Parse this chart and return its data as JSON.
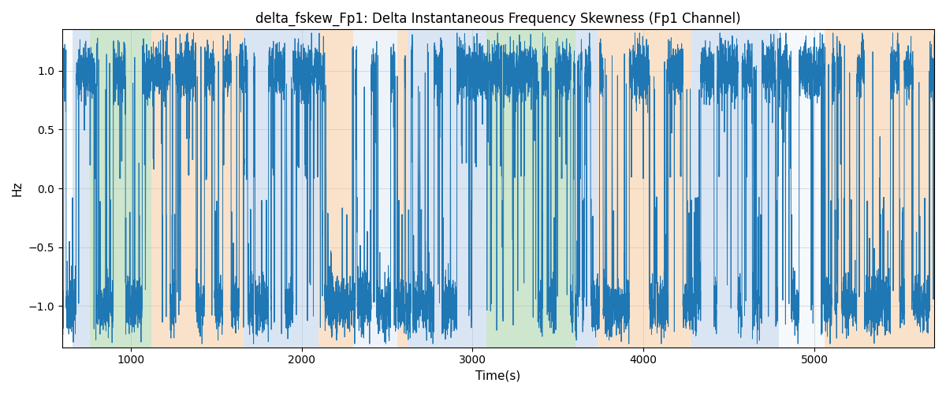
{
  "title": "delta_fskew_Fp1: Delta Instantaneous Frequency Skewness (Fp1 Channel)",
  "xlabel": "Time(s)",
  "ylabel": "Hz",
  "xlim": [
    600,
    5700
  ],
  "ylim": [
    -1.35,
    1.35
  ],
  "line_color": "#1f77b4",
  "line_width": 0.7,
  "background_bands": [
    {
      "xmin": 660,
      "xmax": 760,
      "color": "#aec6e8",
      "alpha": 0.45
    },
    {
      "xmin": 760,
      "xmax": 1120,
      "color": "#90c990",
      "alpha": 0.45
    },
    {
      "xmin": 1120,
      "xmax": 1660,
      "color": "#f5c08a",
      "alpha": 0.45
    },
    {
      "xmin": 1660,
      "xmax": 2100,
      "color": "#aec6e8",
      "alpha": 0.45
    },
    {
      "xmin": 2100,
      "xmax": 2300,
      "color": "#f5c08a",
      "alpha": 0.45
    },
    {
      "xmin": 2300,
      "xmax": 2560,
      "color": "#aec6e8",
      "alpha": 0.2
    },
    {
      "xmin": 2560,
      "xmax": 2620,
      "color": "#f5c08a",
      "alpha": 0.45
    },
    {
      "xmin": 2620,
      "xmax": 3080,
      "color": "#aec6e8",
      "alpha": 0.45
    },
    {
      "xmin": 3080,
      "xmax": 3120,
      "color": "#90c990",
      "alpha": 0.45
    },
    {
      "xmin": 3120,
      "xmax": 3600,
      "color": "#90c990",
      "alpha": 0.45
    },
    {
      "xmin": 3600,
      "xmax": 3660,
      "color": "#aec6e8",
      "alpha": 0.45
    },
    {
      "xmin": 3660,
      "xmax": 3730,
      "color": "#aec6e8",
      "alpha": 0.45
    },
    {
      "xmin": 3730,
      "xmax": 4280,
      "color": "#f5c08a",
      "alpha": 0.45
    },
    {
      "xmin": 4280,
      "xmax": 4790,
      "color": "#aec6e8",
      "alpha": 0.45
    },
    {
      "xmin": 4790,
      "xmax": 5060,
      "color": "#aec6e8",
      "alpha": 0.1
    },
    {
      "xmin": 5060,
      "xmax": 5700,
      "color": "#f5c08a",
      "alpha": 0.45
    }
  ],
  "yticks": [
    -1.0,
    -0.5,
    0.0,
    0.5,
    1.0
  ],
  "grid_color": "#b0b0b0",
  "grid_alpha": 0.6,
  "seed": 12345,
  "n_points": 10000,
  "x_start": 600,
  "x_end": 5700
}
